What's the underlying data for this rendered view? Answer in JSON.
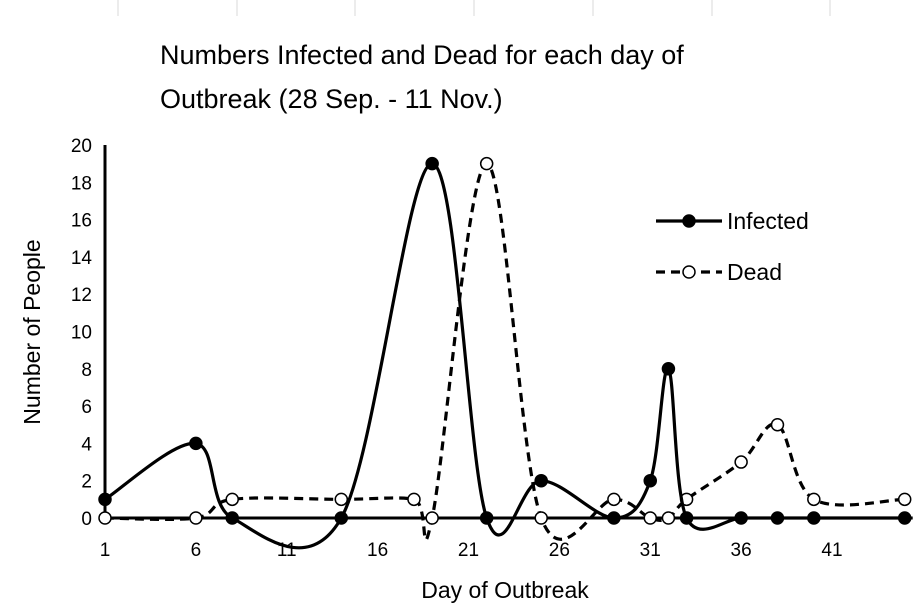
{
  "chart_data": {
    "type": "line",
    "title_lines": [
      "Numbers Infected and Dead for each day of",
      "Outbreak (28 Sep. - 11 Nov.)"
    ],
    "xlabel": "Day of Outbreak",
    "ylabel": "Number of People",
    "xlim": [
      1,
      45
    ],
    "ylim": [
      0,
      20
    ],
    "x_ticks": [
      "1",
      "6",
      "11",
      "16",
      "21",
      "26",
      "31",
      "36",
      "41"
    ],
    "x_tick_values": [
      1,
      6,
      11,
      16,
      21,
      26,
      31,
      36,
      41
    ],
    "y_ticks": [
      "0",
      "2",
      "4",
      "6",
      "8",
      "10",
      "12",
      "14",
      "16",
      "18",
      "20"
    ],
    "y_tick_values": [
      0,
      2,
      4,
      6,
      8,
      10,
      12,
      14,
      16,
      18,
      20
    ],
    "grid": false,
    "legend_position": "top-right",
    "smooth": true,
    "series": [
      {
        "name": "Infected",
        "style": "solid",
        "marker": "filled",
        "x": [
          1,
          6,
          8,
          14,
          19,
          22,
          25,
          29,
          31,
          32,
          33,
          36,
          38,
          40,
          45
        ],
        "y": [
          1,
          4,
          0,
          0,
          19,
          0,
          2,
          0,
          2,
          8,
          0,
          0,
          0,
          0,
          0
        ]
      },
      {
        "name": "Dead",
        "style": "dashed",
        "marker": "hollow",
        "x": [
          1,
          6,
          8,
          14,
          18,
          19,
          22,
          25,
          29,
          31,
          32,
          33,
          36,
          38,
          40,
          45
        ],
        "y": [
          0,
          0,
          1,
          1,
          1,
          0,
          19,
          0,
          1,
          0,
          0,
          1,
          3,
          5,
          1,
          1
        ]
      }
    ]
  }
}
